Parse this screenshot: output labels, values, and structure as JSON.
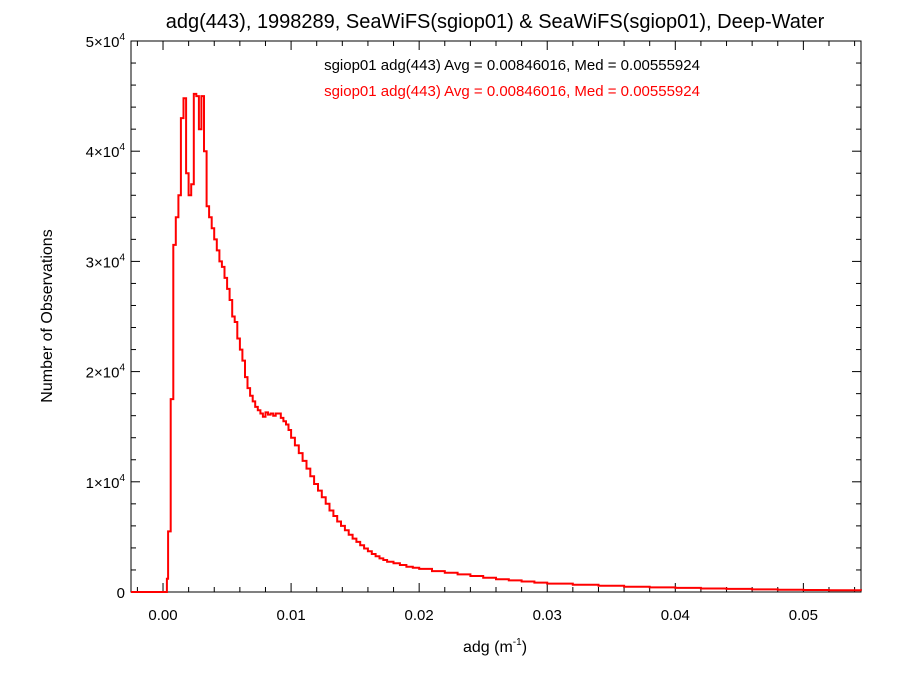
{
  "chart_data": {
    "type": "histogram",
    "title": "adg(443), 1998289, SeaWiFS(sgiop01) & SeaWiFS(sgiop01), Deep-Water",
    "xlabel": "adg (m",
    "xlabel_sup": "-1",
    "xlabel_suffix": ")",
    "ylabel": "Number of Observations",
    "xlim": [
      -0.0025,
      0.0545
    ],
    "ylim": [
      0,
      50000
    ],
    "x_ticks": [
      {
        "value": 0.0,
        "label": "0.00"
      },
      {
        "value": 0.01,
        "label": "0.01"
      },
      {
        "value": 0.02,
        "label": "0.02"
      },
      {
        "value": 0.03,
        "label": "0.03"
      },
      {
        "value": 0.04,
        "label": "0.04"
      },
      {
        "value": 0.05,
        "label": "0.05"
      }
    ],
    "y_ticks": [
      {
        "value": 0,
        "mant": "0",
        "exp": ""
      },
      {
        "value": 10000,
        "mant": "1×10",
        "exp": "4"
      },
      {
        "value": 20000,
        "mant": "2×10",
        "exp": "4"
      },
      {
        "value": 30000,
        "mant": "3×10",
        "exp": "4"
      },
      {
        "value": 40000,
        "mant": "4×10",
        "exp": "4"
      },
      {
        "value": 50000,
        "mant": "5×10",
        "exp": "4"
      }
    ],
    "legend": [
      {
        "text": "sgiop01 adg(443) Avg = 0.00846016, Med = 0.00555924",
        "color": "#000000"
      },
      {
        "text": "sgiop01 adg(443) Avg = 0.00846016, Med = 0.00555924",
        "color": "#ff0000"
      }
    ],
    "series": [
      {
        "color": "#ff0000",
        "points": [
          [
            -0.0025,
            0
          ],
          [
            0.0002,
            0
          ],
          [
            0.0003,
            1200
          ],
          [
            0.0004,
            5500
          ],
          [
            0.0006,
            17500
          ],
          [
            0.0008,
            31500
          ],
          [
            0.001,
            34000
          ],
          [
            0.0012,
            36000
          ],
          [
            0.0014,
            43000
          ],
          [
            0.0016,
            44800
          ],
          [
            0.0018,
            38000
          ],
          [
            0.002,
            36000
          ],
          [
            0.0022,
            37000
          ],
          [
            0.0024,
            45200
          ],
          [
            0.0026,
            45000
          ],
          [
            0.0028,
            42000
          ],
          [
            0.003,
            45000
          ],
          [
            0.0032,
            40000
          ],
          [
            0.0034,
            35000
          ],
          [
            0.0036,
            34000
          ],
          [
            0.0038,
            33000
          ],
          [
            0.004,
            32000
          ],
          [
            0.0042,
            31000
          ],
          [
            0.0044,
            30000
          ],
          [
            0.0046,
            29500
          ],
          [
            0.0048,
            28500
          ],
          [
            0.005,
            27500
          ],
          [
            0.0052,
            26500
          ],
          [
            0.0054,
            25000
          ],
          [
            0.0056,
            24500
          ],
          [
            0.0058,
            23000
          ],
          [
            0.006,
            22000
          ],
          [
            0.0062,
            21000
          ],
          [
            0.0064,
            19500
          ],
          [
            0.0066,
            18500
          ],
          [
            0.0068,
            17800
          ],
          [
            0.007,
            17300
          ],
          [
            0.0072,
            16800
          ],
          [
            0.0074,
            16500
          ],
          [
            0.0076,
            16200
          ],
          [
            0.0078,
            15900
          ],
          [
            0.008,
            16300
          ],
          [
            0.0082,
            16100
          ],
          [
            0.0084,
            16200
          ],
          [
            0.0086,
            16000
          ],
          [
            0.0088,
            16200
          ],
          [
            0.009,
            16200
          ],
          [
            0.0092,
            15800
          ],
          [
            0.0094,
            15500
          ],
          [
            0.0096,
            15200
          ],
          [
            0.0098,
            14700
          ],
          [
            0.01,
            14000
          ],
          [
            0.0103,
            13300
          ],
          [
            0.0106,
            12600
          ],
          [
            0.0109,
            11900
          ],
          [
            0.0112,
            11200
          ],
          [
            0.0115,
            10500
          ],
          [
            0.0118,
            9800
          ],
          [
            0.0121,
            9200
          ],
          [
            0.0124,
            8600
          ],
          [
            0.0127,
            8000
          ],
          [
            0.013,
            7400
          ],
          [
            0.0133,
            6900
          ],
          [
            0.0136,
            6400
          ],
          [
            0.0139,
            6000
          ],
          [
            0.0142,
            5600
          ],
          [
            0.0145,
            5200
          ],
          [
            0.0148,
            4850
          ],
          [
            0.0151,
            4550
          ],
          [
            0.0154,
            4250
          ],
          [
            0.0157,
            3950
          ],
          [
            0.016,
            3700
          ],
          [
            0.0163,
            3450
          ],
          [
            0.0166,
            3250
          ],
          [
            0.0169,
            3050
          ],
          [
            0.0172,
            2900
          ],
          [
            0.0175,
            2750
          ],
          [
            0.018,
            2600
          ],
          [
            0.0185,
            2450
          ],
          [
            0.019,
            2300
          ],
          [
            0.0195,
            2200
          ],
          [
            0.02,
            2100
          ],
          [
            0.021,
            1900
          ],
          [
            0.022,
            1750
          ],
          [
            0.023,
            1600
          ],
          [
            0.024,
            1450
          ],
          [
            0.025,
            1300
          ],
          [
            0.026,
            1150
          ],
          [
            0.027,
            1050
          ],
          [
            0.028,
            950
          ],
          [
            0.029,
            850
          ],
          [
            0.03,
            760
          ],
          [
            0.032,
            650
          ],
          [
            0.034,
            560
          ],
          [
            0.036,
            480
          ],
          [
            0.038,
            420
          ],
          [
            0.04,
            370
          ],
          [
            0.042,
            320
          ],
          [
            0.044,
            280
          ],
          [
            0.046,
            240
          ],
          [
            0.048,
            210
          ],
          [
            0.05,
            180
          ],
          [
            0.052,
            150
          ],
          [
            0.0545,
            130
          ]
        ]
      }
    ]
  }
}
